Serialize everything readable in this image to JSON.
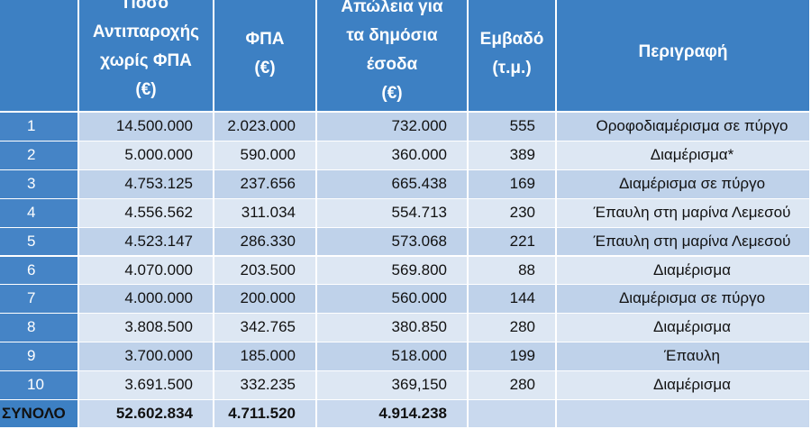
{
  "header": [
    [
      "Ποσό",
      "Αντιπαροχής",
      "χωρίς ΦΠΑ",
      "(€)"
    ],
    [
      "ΦΠΑ",
      "(€)"
    ],
    [
      "Απώλεια για",
      "τα δημόσια",
      "έσοδα",
      "(€)"
    ],
    [
      "Εμβαδό",
      "(τ.μ.)"
    ],
    [
      "Περιγραφή"
    ]
  ],
  "rows": [
    [
      "1",
      "14.500.000",
      "2.023.000",
      "732.000",
      "555",
      "Οροφοδιαμέρισμα σε πύργο"
    ],
    [
      "2",
      "5.000.000",
      "590.000",
      "360.000",
      "389",
      "Διαμέρισμα*"
    ],
    [
      "3",
      "4.753.125",
      "237.656",
      "665.438",
      "169",
      "Διαμέρισμα σε πύργο"
    ],
    [
      "4",
      "4.556.562",
      "311.034",
      "554.713",
      "230",
      "Έπαυλη στη μαρίνα Λεμεσού"
    ],
    [
      "5",
      "4.523.147",
      "286.330",
      "573.068",
      "221",
      "Έπαυλη στη μαρίνα Λεμεσού"
    ],
    [
      "6",
      "4.070.000",
      "203.500",
      "569.800",
      "88",
      "Διαμέρισμα"
    ],
    [
      "7",
      "4.000.000",
      "200.000",
      "560.000",
      "144",
      "Διαμέρισμα σε πύργο"
    ],
    [
      "8",
      "3.808.500",
      "342.765",
      "380.850",
      "280",
      "Διαμέρισμα"
    ],
    [
      "9",
      "3.700.000",
      "185.000",
      "518.000",
      "199",
      "Έπαυλη"
    ],
    [
      "10",
      "3.691.500",
      "332.235",
      "369,150",
      "280",
      "Διαμέρισμα"
    ]
  ],
  "total": [
    "ΣΥΝΟΛΟ",
    "52.602.834",
    "4.711.520",
    "4.914.238"
  ]
}
